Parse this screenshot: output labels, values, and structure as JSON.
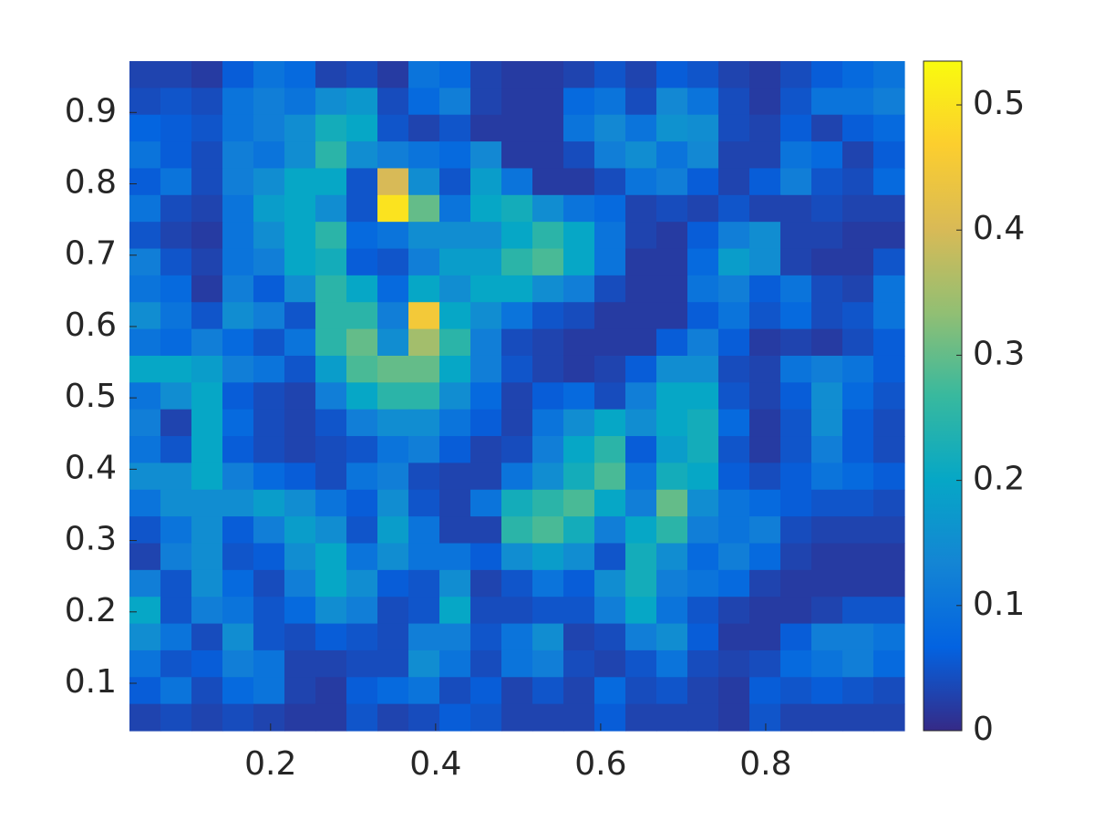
{
  "chart_data": {
    "type": "heatmap",
    "xlim": [
      0.029,
      0.968
    ],
    "ylim": [
      0.0335,
      0.972
    ],
    "xticks": [
      0.2,
      0.4,
      0.6,
      0.8
    ],
    "yticks": [
      0.1,
      0.2,
      0.3,
      0.4,
      0.5,
      0.6,
      0.7,
      0.8,
      0.9
    ],
    "clim": [
      0,
      0.535
    ],
    "cticks": [
      0,
      0.1,
      0.2,
      0.3,
      0.4,
      0.5
    ],
    "colormap": [
      "#352a87",
      "#0363e1",
      "#1485d4",
      "#06a7c6",
      "#38b99e",
      "#92bf73",
      "#d9ba56",
      "#fcce2e",
      "#f9fb0e"
    ],
    "z": [
      [
        0.03,
        0.03,
        0.02,
        0.06,
        0.1,
        0.08,
        0.03,
        0.04,
        0.02,
        0.1,
        0.08,
        0.03,
        0.02,
        0.02,
        0.03,
        0.05,
        0.03,
        0.06,
        0.05,
        0.03,
        0.02,
        0.04,
        0.06,
        0.08,
        0.1
      ],
      [
        0.04,
        0.05,
        0.04,
        0.1,
        0.12,
        0.1,
        0.15,
        0.17,
        0.04,
        0.08,
        0.12,
        0.03,
        0.02,
        0.02,
        0.08,
        0.1,
        0.04,
        0.14,
        0.1,
        0.04,
        0.02,
        0.05,
        0.1,
        0.1,
        0.12
      ],
      [
        0.07,
        0.06,
        0.05,
        0.1,
        0.12,
        0.15,
        0.22,
        0.2,
        0.05,
        0.03,
        0.05,
        0.02,
        0.02,
        0.02,
        0.1,
        0.14,
        0.1,
        0.16,
        0.15,
        0.04,
        0.03,
        0.06,
        0.03,
        0.06,
        0.08
      ],
      [
        0.1,
        0.06,
        0.04,
        0.12,
        0.1,
        0.15,
        0.25,
        0.15,
        0.12,
        0.1,
        0.08,
        0.14,
        0.02,
        0.02,
        0.04,
        0.12,
        0.15,
        0.1,
        0.14,
        0.03,
        0.03,
        0.1,
        0.08,
        0.03,
        0.06
      ],
      [
        0.06,
        0.1,
        0.04,
        0.12,
        0.15,
        0.2,
        0.2,
        0.05,
        0.4,
        0.15,
        0.05,
        0.18,
        0.1,
        0.02,
        0.02,
        0.04,
        0.1,
        0.12,
        0.06,
        0.03,
        0.06,
        0.12,
        0.05,
        0.04,
        0.08
      ],
      [
        0.1,
        0.04,
        0.03,
        0.1,
        0.18,
        0.2,
        0.15,
        0.05,
        0.5,
        0.3,
        0.1,
        0.2,
        0.22,
        0.15,
        0.1,
        0.08,
        0.03,
        0.04,
        0.03,
        0.05,
        0.03,
        0.03,
        0.04,
        0.03,
        0.03
      ],
      [
        0.05,
        0.03,
        0.02,
        0.1,
        0.15,
        0.2,
        0.25,
        0.08,
        0.1,
        0.15,
        0.15,
        0.15,
        0.2,
        0.25,
        0.2,
        0.1,
        0.03,
        0.02,
        0.06,
        0.12,
        0.15,
        0.03,
        0.03,
        0.02,
        0.02
      ],
      [
        0.12,
        0.05,
        0.03,
        0.1,
        0.12,
        0.2,
        0.22,
        0.06,
        0.05,
        0.12,
        0.18,
        0.18,
        0.25,
        0.28,
        0.2,
        0.1,
        0.02,
        0.02,
        0.08,
        0.18,
        0.15,
        0.03,
        0.02,
        0.02,
        0.05
      ],
      [
        0.1,
        0.08,
        0.02,
        0.12,
        0.06,
        0.15,
        0.25,
        0.2,
        0.08,
        0.2,
        0.15,
        0.2,
        0.2,
        0.15,
        0.12,
        0.04,
        0.02,
        0.02,
        0.1,
        0.12,
        0.06,
        0.1,
        0.04,
        0.03,
        0.1
      ],
      [
        0.15,
        0.1,
        0.05,
        0.15,
        0.12,
        0.05,
        0.25,
        0.25,
        0.12,
        0.45,
        0.2,
        0.15,
        0.1,
        0.05,
        0.04,
        0.02,
        0.02,
        0.02,
        0.06,
        0.1,
        0.05,
        0.08,
        0.04,
        0.05,
        0.1
      ],
      [
        0.1,
        0.08,
        0.12,
        0.08,
        0.05,
        0.1,
        0.25,
        0.3,
        0.15,
        0.35,
        0.25,
        0.12,
        0.04,
        0.03,
        0.02,
        0.02,
        0.02,
        0.06,
        0.12,
        0.06,
        0.02,
        0.03,
        0.02,
        0.04,
        0.06
      ],
      [
        0.2,
        0.2,
        0.18,
        0.12,
        0.1,
        0.05,
        0.18,
        0.28,
        0.3,
        0.3,
        0.2,
        0.12,
        0.05,
        0.03,
        0.02,
        0.03,
        0.06,
        0.15,
        0.15,
        0.04,
        0.03,
        0.1,
        0.12,
        0.1,
        0.06
      ],
      [
        0.1,
        0.15,
        0.2,
        0.06,
        0.04,
        0.03,
        0.12,
        0.2,
        0.25,
        0.25,
        0.15,
        0.08,
        0.03,
        0.06,
        0.08,
        0.04,
        0.12,
        0.2,
        0.2,
        0.05,
        0.03,
        0.06,
        0.15,
        0.08,
        0.05
      ],
      [
        0.12,
        0.03,
        0.2,
        0.08,
        0.04,
        0.03,
        0.05,
        0.12,
        0.15,
        0.15,
        0.1,
        0.06,
        0.03,
        0.1,
        0.15,
        0.2,
        0.15,
        0.2,
        0.22,
        0.08,
        0.02,
        0.05,
        0.15,
        0.06,
        0.04
      ],
      [
        0.1,
        0.05,
        0.2,
        0.06,
        0.04,
        0.03,
        0.04,
        0.05,
        0.1,
        0.12,
        0.06,
        0.03,
        0.04,
        0.12,
        0.2,
        0.25,
        0.06,
        0.18,
        0.22,
        0.05,
        0.02,
        0.05,
        0.12,
        0.06,
        0.04
      ],
      [
        0.15,
        0.15,
        0.2,
        0.12,
        0.08,
        0.06,
        0.04,
        0.1,
        0.12,
        0.04,
        0.03,
        0.03,
        0.1,
        0.15,
        0.22,
        0.28,
        0.1,
        0.22,
        0.2,
        0.06,
        0.04,
        0.06,
        0.1,
        0.08,
        0.06
      ],
      [
        0.1,
        0.15,
        0.15,
        0.15,
        0.18,
        0.15,
        0.1,
        0.06,
        0.15,
        0.05,
        0.03,
        0.1,
        0.22,
        0.25,
        0.28,
        0.2,
        0.12,
        0.3,
        0.15,
        0.1,
        0.08,
        0.06,
        0.05,
        0.05,
        0.04
      ],
      [
        0.05,
        0.1,
        0.15,
        0.06,
        0.12,
        0.18,
        0.15,
        0.05,
        0.18,
        0.1,
        0.03,
        0.03,
        0.25,
        0.28,
        0.22,
        0.12,
        0.2,
        0.25,
        0.12,
        0.1,
        0.12,
        0.04,
        0.03,
        0.03,
        0.03
      ],
      [
        0.03,
        0.12,
        0.15,
        0.05,
        0.06,
        0.15,
        0.2,
        0.1,
        0.15,
        0.1,
        0.1,
        0.06,
        0.15,
        0.18,
        0.15,
        0.05,
        0.22,
        0.15,
        0.08,
        0.12,
        0.08,
        0.03,
        0.02,
        0.02,
        0.02
      ],
      [
        0.12,
        0.05,
        0.15,
        0.08,
        0.04,
        0.12,
        0.2,
        0.15,
        0.06,
        0.05,
        0.15,
        0.03,
        0.05,
        0.1,
        0.06,
        0.15,
        0.22,
        0.12,
        0.1,
        0.08,
        0.03,
        0.02,
        0.02,
        0.02,
        0.02
      ],
      [
        0.2,
        0.05,
        0.12,
        0.1,
        0.05,
        0.08,
        0.15,
        0.12,
        0.04,
        0.05,
        0.2,
        0.04,
        0.04,
        0.05,
        0.05,
        0.12,
        0.2,
        0.1,
        0.05,
        0.03,
        0.02,
        0.02,
        0.03,
        0.05,
        0.05
      ],
      [
        0.15,
        0.1,
        0.04,
        0.15,
        0.05,
        0.04,
        0.06,
        0.05,
        0.04,
        0.12,
        0.12,
        0.05,
        0.1,
        0.15,
        0.03,
        0.04,
        0.12,
        0.15,
        0.06,
        0.02,
        0.02,
        0.06,
        0.12,
        0.12,
        0.1
      ],
      [
        0.1,
        0.05,
        0.06,
        0.12,
        0.1,
        0.03,
        0.03,
        0.04,
        0.04,
        0.15,
        0.1,
        0.04,
        0.1,
        0.12,
        0.04,
        0.03,
        0.05,
        0.1,
        0.04,
        0.03,
        0.04,
        0.08,
        0.1,
        0.12,
        0.08
      ],
      [
        0.06,
        0.1,
        0.04,
        0.08,
        0.1,
        0.03,
        0.02,
        0.06,
        0.08,
        0.1,
        0.04,
        0.06,
        0.03,
        0.05,
        0.03,
        0.08,
        0.04,
        0.05,
        0.03,
        0.02,
        0.06,
        0.05,
        0.06,
        0.05,
        0.04
      ],
      [
        0.03,
        0.04,
        0.03,
        0.04,
        0.03,
        0.02,
        0.02,
        0.05,
        0.03,
        0.04,
        0.06,
        0.05,
        0.03,
        0.03,
        0.03,
        0.06,
        0.03,
        0.03,
        0.03,
        0.02,
        0.05,
        0.03,
        0.03,
        0.03,
        0.03
      ]
    ]
  }
}
